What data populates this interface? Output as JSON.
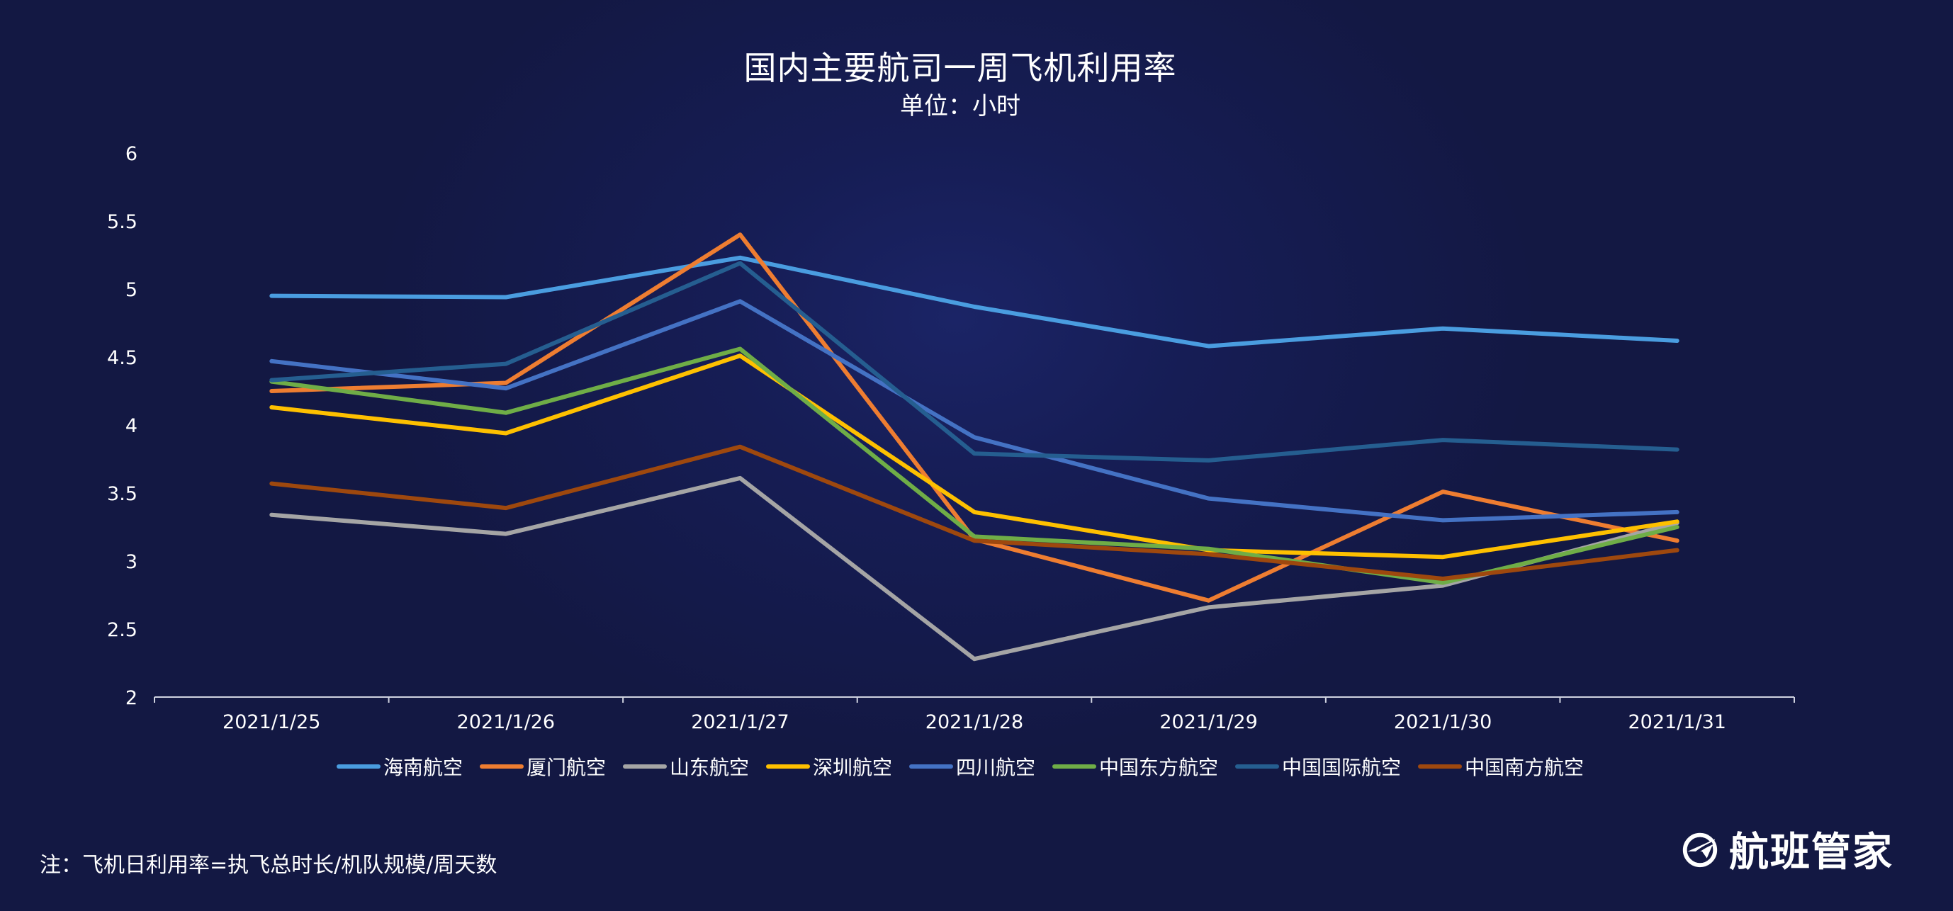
{
  "chart_data": {
    "type": "line",
    "title": "国内主要航司一周飞机利用率",
    "subtitle": "单位：小时",
    "xlabel": "",
    "ylabel": "",
    "categories": [
      "2021/1/25",
      "2021/1/26",
      "2021/1/27",
      "2021/1/28",
      "2021/1/29",
      "2021/1/30",
      "2021/1/31"
    ],
    "ylim": [
      2,
      6
    ],
    "yticks": [
      "2",
      "2.5",
      "3",
      "3.5",
      "4",
      "4.5",
      "5",
      "5.5",
      "6"
    ],
    "grid": false,
    "legend_position": "bottom",
    "series": [
      {
        "name": "海南航空",
        "color": "#4a9de0",
        "values": [
          4.95,
          4.94,
          5.23,
          4.87,
          4.58,
          4.71,
          4.62
        ]
      },
      {
        "name": "厦门航空",
        "color": "#ee7d31",
        "values": [
          4.25,
          4.31,
          5.4,
          3.16,
          2.71,
          3.51,
          3.15
        ]
      },
      {
        "name": "山东航空",
        "color": "#a5a5a5",
        "values": [
          3.34,
          3.2,
          3.61,
          2.28,
          2.66,
          2.82,
          3.28
        ]
      },
      {
        "name": "深圳航空",
        "color": "#fec000",
        "values": [
          4.13,
          3.94,
          4.51,
          3.36,
          3.08,
          3.03,
          3.29
        ]
      },
      {
        "name": "四川航空",
        "color": "#4472c4",
        "values": [
          4.47,
          4.27,
          4.91,
          3.91,
          3.46,
          3.3,
          3.36
        ]
      },
      {
        "name": "中国东方航空",
        "color": "#6fad47",
        "values": [
          4.32,
          4.09,
          4.56,
          3.18,
          3.09,
          2.84,
          3.25
        ]
      },
      {
        "name": "中国国际航空",
        "color": "#255e90",
        "values": [
          4.33,
          4.45,
          5.19,
          3.79,
          3.74,
          3.89,
          3.82
        ]
      },
      {
        "name": "中国南方航空",
        "color": "#9e480e",
        "values": [
          3.57,
          3.39,
          3.84,
          3.15,
          3.05,
          2.87,
          3.08
        ]
      }
    ]
  },
  "footnote": "注：飞机日利用率=执飞总时长/机队规模/周天数",
  "logo": {
    "text": "航班管家",
    "icon": "globe-plane-icon"
  }
}
